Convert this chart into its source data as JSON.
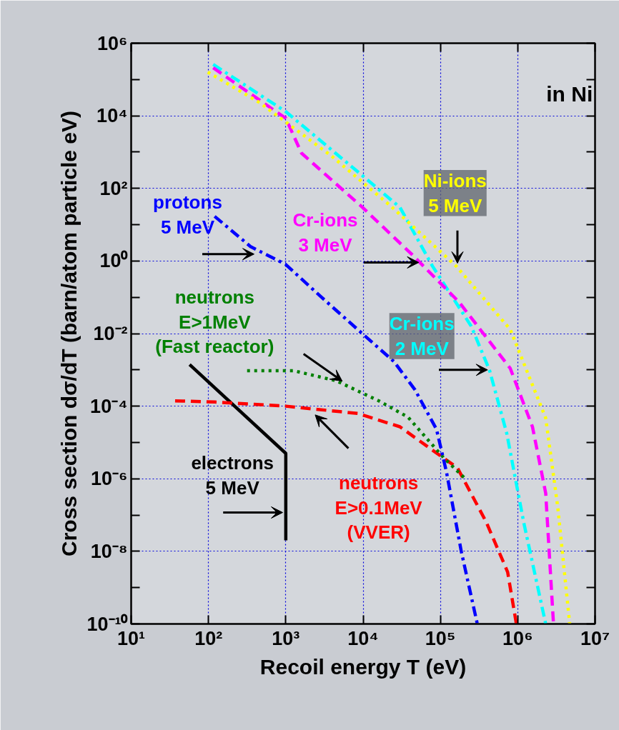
{
  "chart_data": {
    "type": "line",
    "xlabel": "Recoil energy T (eV)",
    "ylabel": "Cross section dσ/dT (barn/atom particle eV)",
    "log": "xy",
    "grid": true,
    "marker": "none",
    "xlim": [
      10,
      10000000
    ],
    "ylim": [
      1e-10,
      1000000
    ],
    "xticks": [
      {
        "value": 10,
        "label": "10¹"
      },
      {
        "value": 100,
        "label": "10²"
      },
      {
        "value": 1000,
        "label": "10³"
      },
      {
        "value": 10000,
        "label": "10⁴"
      },
      {
        "value": 100000,
        "label": "10⁵"
      },
      {
        "value": 1000000,
        "label": "10⁶"
      },
      {
        "value": 10000000,
        "label": "10⁷"
      }
    ],
    "yticks": [
      {
        "value": 1e-10,
        "label": "10⁻¹⁰"
      },
      {
        "value": 1e-09,
        "label": null
      },
      {
        "value": 1e-08,
        "label": "10⁻⁸"
      },
      {
        "value": 1e-07,
        "label": null
      },
      {
        "value": 1e-06,
        "label": "10⁻⁶"
      },
      {
        "value": 1e-05,
        "label": null
      },
      {
        "value": 0.0001,
        "label": "10⁻⁴"
      },
      {
        "value": 0.001,
        "label": null
      },
      {
        "value": 0.01,
        "label": "10⁻²"
      },
      {
        "value": 0.1,
        "label": null
      },
      {
        "value": 1,
        "label": "10⁰"
      },
      {
        "value": 10,
        "label": null
      },
      {
        "value": 100,
        "label": "10²"
      },
      {
        "value": 1000,
        "label": null
      },
      {
        "value": 10000,
        "label": "10⁴"
      },
      {
        "value": 100000,
        "label": null
      },
      {
        "value": 1000000,
        "label": "10⁶"
      }
    ],
    "annotations": [
      "in Ni"
    ],
    "series": [
      {
        "name": "electrons\n5 MeV",
        "color": "#000000",
        "line_style": "solid",
        "x": [
          57,
          1000,
          1000
        ],
        "values": [
          0.0014,
          5e-06,
          2e-08
        ]
      },
      {
        "name": "neutrons\nE>0.1MeV\n(VVER)",
        "color": "#ff0000",
        "line_style": "dashed",
        "x": [
          37,
          120,
          1000,
          8500,
          30000,
          71000,
          166000,
          390000,
          740000,
          960000
        ],
        "values": [
          0.00014,
          0.00013,
          0.0001,
          6.3e-05,
          2.7e-05,
          7.2e-06,
          2e-06,
          6.5e-08,
          2.7e-09,
          1e-10
        ]
      },
      {
        "name": "neutrons\nE>1MeV\n(Fast reactor)",
        "color": "#008000",
        "line_style": "dotted",
        "x": [
          316,
          1260,
          4500,
          16000,
          38000,
          110000,
          210000
        ],
        "values": [
          0.00095,
          0.00095,
          0.0005,
          0.00014,
          5e-05,
          3.8e-06,
          1e-06
        ]
      },
      {
        "name": "protons\n5 MeV",
        "color": "#0000ff",
        "line_style": "dashdot",
        "x": [
          120,
          350,
          1000,
          2900,
          8500,
          25000,
          47000,
          89000,
          120000,
          186000,
          300000
        ],
        "values": [
          17,
          2.5,
          0.8,
          0.1,
          0.013,
          0.0017,
          0.00028,
          2.3e-05,
          1.5e-06,
          1e-08,
          1e-10
        ]
      },
      {
        "name": "Cr-ions\n2 MeV",
        "color": "#00ffff",
        "line_style": "dashdot",
        "x": [
          115,
          1000,
          8500,
          30000,
          79000,
          250000,
          430000,
          720000,
          1200000,
          2300000
        ],
        "values": [
          260000,
          13000,
          290,
          30,
          0.72,
          0.016,
          0.001,
          1.8e-05,
          6e-08,
          1e-10
        ]
      },
      {
        "name": "Cr-ions\n3 MeV",
        "color": "#ff00ff",
        "line_style": "dashed",
        "x": [
          115,
          1000,
          1600,
          9500,
          43000,
          174000,
          800000,
          1550000,
          2300000,
          2900000
        ],
        "values": [
          210000,
          8500,
          930,
          32,
          1.5,
          0.074,
          0.0011,
          2.7e-05,
          4e-07,
          1e-10
        ]
      },
      {
        "name": "Ni-ions\n5 MeV",
        "color": "#ffff00",
        "line_style": "dotted",
        "x": [
          98,
          460,
          3900,
          23000,
          160000,
          800000,
          2300000,
          3300000,
          4700000
        ],
        "values": [
          160000,
          23000,
          780,
          32,
          0.72,
          0.013,
          4.7e-05,
          1.6e-07,
          1e-10
        ]
      }
    ]
  }
}
